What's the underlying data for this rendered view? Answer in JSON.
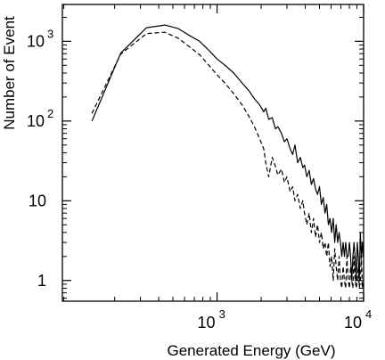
{
  "chart_data": {
    "type": "line",
    "title": "",
    "xlabel": "Generated Energy (GeV)",
    "ylabel": "Number of Event",
    "xscale": "log",
    "yscale": "log",
    "xlim": [
      88,
      10000
    ],
    "ylim": [
      0.55,
      2900
    ],
    "grid": false,
    "legend": "none",
    "x_ticks": [
      {
        "value": 1000,
        "base": "10",
        "exp": "3"
      },
      {
        "value": 10000,
        "base": "10",
        "exp": "4"
      }
    ],
    "y_ticks": [
      {
        "value": 1,
        "base": "1",
        "exp": ""
      },
      {
        "value": 10,
        "base": "10",
        "exp": ""
      },
      {
        "value": 100,
        "base": "10",
        "exp": "2"
      },
      {
        "value": 1000,
        "base": "10",
        "exp": "3"
      }
    ],
    "series": [
      {
        "style": "solid",
        "color": "#000000",
        "x": [
          140,
          220,
          330,
          440,
          540,
          640,
          760,
          880,
          1000,
          1150,
          1300,
          1480,
          1650,
          1800,
          1950,
          2080,
          2150,
          2250,
          2380,
          2500,
          2600,
          2750,
          2880,
          3000,
          3150,
          3280,
          3400,
          3550,
          3700,
          3850,
          3950,
          4100,
          4250,
          4400,
          4550,
          4700,
          4850,
          5000,
          5150,
          5300,
          5450,
          5600,
          5750,
          5900,
          6050,
          6200,
          6350,
          6500,
          6650,
          6800,
          6950,
          7100,
          7250,
          7400,
          7550,
          7700,
          7850,
          8000,
          8150,
          8300,
          8450,
          8600,
          8750,
          8900,
          9050,
          9200,
          9350,
          9500,
          9650,
          9800,
          9950
        ],
        "y": [
          100,
          710,
          1480,
          1600,
          1450,
          1200,
          1000,
          770,
          600,
          490,
          400,
          300,
          240,
          190,
          160,
          130,
          145,
          105,
          110,
          80,
          85,
          70,
          55,
          60,
          45,
          38,
          50,
          30,
          35,
          26,
          28,
          20,
          24,
          16,
          19,
          14,
          12,
          15,
          9,
          11,
          7,
          9,
          5,
          6,
          4,
          6,
          3,
          5,
          3,
          4,
          3,
          2,
          3,
          2,
          3,
          2,
          2,
          3,
          2,
          1,
          2,
          3,
          2,
          1,
          3,
          2,
          1,
          4,
          2,
          3,
          2
        ]
      },
      {
        "style": "dashed",
        "color": "#000000",
        "x": [
          140,
          220,
          330,
          440,
          540,
          640,
          760,
          880,
          1000,
          1150,
          1300,
          1480,
          1650,
          1800,
          1950,
          2080,
          2150,
          2250,
          2380,
          2500,
          2600,
          2750,
          2880,
          3000,
          3150,
          3280,
          3400,
          3550,
          3700,
          3850,
          3950,
          4100,
          4250,
          4400,
          4550,
          4700,
          4850,
          5000,
          5150,
          5300,
          5450,
          5600,
          5750,
          5900,
          6050,
          6200,
          6350,
          6500,
          6650,
          6800,
          6950,
          7100,
          7250,
          7400,
          7550,
          7700,
          7850,
          8000,
          8150,
          8300,
          8450,
          8600,
          8750,
          8900,
          9050,
          9200,
          9350,
          9500,
          9650,
          9800,
          9950
        ],
        "y": [
          125,
          690,
          1250,
          1300,
          1100,
          870,
          680,
          500,
          380,
          290,
          220,
          160,
          115,
          85,
          60,
          45,
          30,
          20,
          35,
          27,
          21,
          25,
          17,
          20,
          13,
          15,
          10,
          12,
          8,
          10,
          7,
          5,
          7,
          4,
          6,
          3.5,
          5,
          3,
          4,
          2.5,
          3,
          2,
          3,
          1.5,
          2,
          1,
          2.5,
          1.5,
          1,
          2,
          1,
          0.8,
          1.5,
          1,
          0.8,
          2,
          1,
          0.8,
          1.5,
          1,
          0.8,
          2,
          1,
          0.8,
          1,
          1.5,
          0.8,
          1,
          2,
          0.8,
          1
        ]
      }
    ]
  }
}
